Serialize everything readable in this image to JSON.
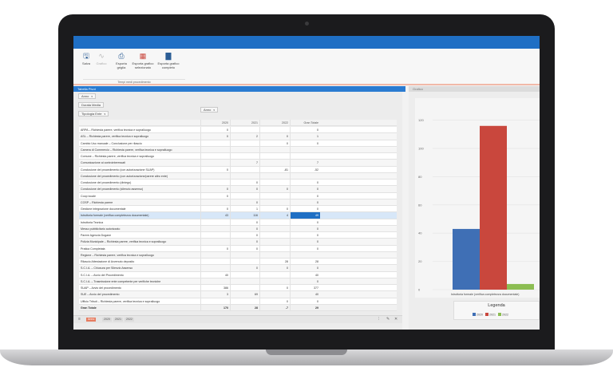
{
  "ribbon": {
    "buttons": [
      {
        "label": "Salva",
        "icon": "save-icon"
      },
      {
        "label": "Grafico",
        "icon": "line-chart-icon",
        "disabled": true
      },
      {
        "label": "Esporta griglia",
        "icon": "printer-icon"
      },
      {
        "label": "Esporta grafico selezionato",
        "icon": "pivot-grid-icon"
      },
      {
        "label": "Esporta grafico completo",
        "icon": "bar-chart-icon"
      }
    ],
    "group_label": "Tempi medi procedimento"
  },
  "pivot_panel": {
    "title": "Tabella Pivot",
    "filter_chip": "Anno",
    "data_field_chip": "Durata Media",
    "row_field_chip": "Tipologia Ente",
    "column_field_chip": "Anno",
    "column_headers": [
      "2020",
      "2021",
      "2022",
      "Gran Totale"
    ],
    "rows": [
      {
        "label": "ARPA – Richiesta parere, verifica tecnica e sopralluogo",
        "v": [
          "0",
          "",
          "",
          "0"
        ]
      },
      {
        "label": "ASL – Richiesta parere, verifica tecnica e sopralluogo",
        "v": [
          "0",
          "2",
          "0",
          "1"
        ]
      },
      {
        "label": "Cambio Uso manuale – Conclusione per rilascio",
        "v": [
          "",
          "",
          "0",
          "0"
        ]
      },
      {
        "label": "Camera di Commercio – Richiesta parere, verifica tecnica e sopralluogo",
        "v": [
          "",
          "",
          "",
          ""
        ]
      },
      {
        "label": "Comune – Richiesta parere, verifica tecnica e sopralluogo",
        "v": [
          "",
          "",
          "",
          ""
        ]
      },
      {
        "label": "Comunicazione ai controinteressati",
        "v": [
          "",
          "7",
          "",
          "7"
        ]
      },
      {
        "label": "Conclusione del procedimento (con autorizzazione SUAP)",
        "v": [
          "0",
          "",
          "-81",
          "-52"
        ]
      },
      {
        "label": "Conclusione del procedimento (con autorizzazione/parere altro ente)",
        "v": [
          "",
          "",
          "",
          ""
        ]
      },
      {
        "label": "Conclusione del procedimento (diniego)",
        "v": [
          "",
          "0",
          "",
          "0"
        ]
      },
      {
        "label": "Conclusione del procedimento (silenzio assenso)",
        "v": [
          "0",
          "0",
          "0",
          "0"
        ]
      },
      {
        "label": "Coop locale",
        "v": [
          "0",
          "",
          "",
          "0"
        ]
      },
      {
        "label": "COSP – Richiesta parere",
        "v": [
          "",
          "0",
          "",
          "0"
        ]
      },
      {
        "label": "Gestione integrazione documentale",
        "v": [
          "0",
          "1",
          "0",
          "0"
        ]
      },
      {
        "label": "Istruttoria formale (verifica completezza documentale)",
        "v": [
          "43",
          "116",
          "4",
          "49"
        ]
      },
      {
        "label": "Istruttoria Tecnica",
        "v": [
          "",
          "0",
          "",
          "0"
        ]
      },
      {
        "label": "Messo pubblicitario autorizzato",
        "v": [
          "",
          "0",
          "",
          "0"
        ]
      },
      {
        "label": "Parere Agenzia Dogane",
        "v": [
          "",
          "0",
          "",
          "0"
        ]
      },
      {
        "label": "Polizia Municipale – Richiesta parere, verifica tecnica e sopralluogo",
        "v": [
          "",
          "0",
          "",
          "0"
        ]
      },
      {
        "label": "Pratica Completata",
        "v": [
          "0",
          "0",
          "",
          "0"
        ]
      },
      {
        "label": "Regione – Richiesta parere, verifica tecnica e sopralluogo",
        "v": [
          "",
          "",
          "",
          ""
        ]
      },
      {
        "label": "Rilascio Attestazione di Avvenuto deposito",
        "v": [
          "",
          "",
          "28",
          "28"
        ]
      },
      {
        "label": "S.C.I.A. – Chiusura per Silenzio Assenso",
        "v": [
          "",
          "0",
          "0",
          "0"
        ]
      },
      {
        "label": "S.C.I.A. – Avvio del Procedimento",
        "v": [
          "40",
          "",
          "",
          "40"
        ]
      },
      {
        "label": "S.C.I.A. – Trasmissione ente competente per verifiche tecniche",
        "v": [
          "",
          "",
          "",
          "0"
        ]
      },
      {
        "label": "SUAP – Avvio del procedimento",
        "v": [
          "386",
          "",
          "0",
          "377"
        ]
      },
      {
        "label": "SUE – Avvio del procedimento",
        "v": [
          "3",
          "69",
          "",
          "40"
        ]
      },
      {
        "label": "Ufficio Tributi – Richiesta parere, verifica tecnica e sopralluogo",
        "v": [
          "",
          "",
          "0",
          "0"
        ]
      }
    ],
    "grand_total": {
      "label": "Gran Totale",
      "v": [
        "170",
        "28",
        "-7",
        "29"
      ]
    },
    "selected_row": 13,
    "footer": {
      "active_page": "Anno",
      "pages": [
        "2020",
        "2021",
        "2022"
      ]
    }
  },
  "chart_panel": {
    "title": "Grafico",
    "legend_title": "Legenda",
    "chart_data": {
      "type": "bar",
      "categories": [
        "Istruttoria formale (verifica completezza documentale)"
      ],
      "series": [
        {
          "name": "2020",
          "values": [
            43
          ],
          "color": "#3f6fb5"
        },
        {
          "name": "2021",
          "values": [
            116
          ],
          "color": "#c9473d"
        },
        {
          "name": "2022",
          "values": [
            4
          ],
          "color": "#8cbd52"
        }
      ],
      "ylim": [
        0,
        130
      ],
      "yticks": [
        0,
        20,
        40,
        60,
        80,
        100,
        120
      ],
      "grid": true,
      "legend_position": "bottom"
    }
  },
  "colors": {
    "accent": "#1f6fc4",
    "selected_row": "#d7e7f8",
    "highlight_cell": "#1f6fc4"
  }
}
